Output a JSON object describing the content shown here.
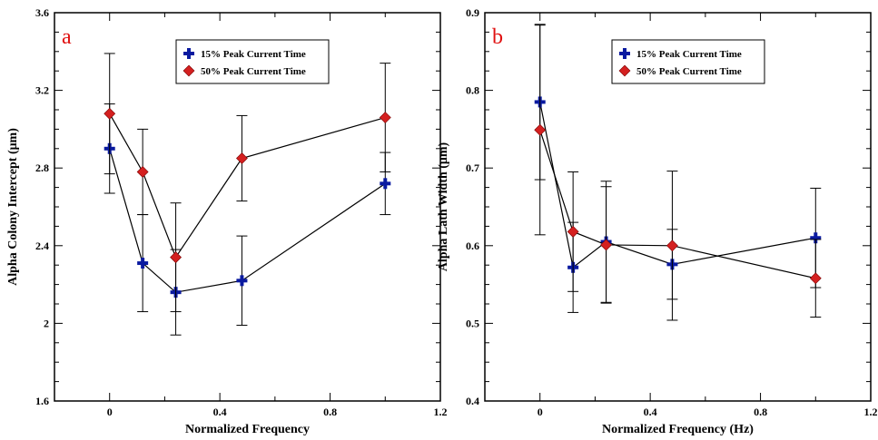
{
  "chart_data": [
    {
      "type": "scatter",
      "panel_letter": "a",
      "xlabel": "Normalized Frequency",
      "ylabel": "Alpha Colony Intercept (μm)",
      "xlim": [
        -0.2,
        1.2
      ],
      "ylim": [
        1.6,
        3.6
      ],
      "x_ticks": [
        "0",
        "0.4",
        "0.8",
        "1.2"
      ],
      "y_ticks": [
        "1.6",
        "2",
        "2.4",
        "2.8",
        "3.2",
        "3.6"
      ],
      "legend_position": "top-center",
      "series": [
        {
          "name": "15% Peak Current Time",
          "color": "#0a1aa0",
          "marker": "plus",
          "x": [
            0,
            0.12,
            0.24,
            0.48,
            1.0
          ],
          "y": [
            2.9,
            2.31,
            2.16,
            2.22,
            2.72
          ],
          "err": [
            0.23,
            0.25,
            0.22,
            0.23,
            0.16
          ]
        },
        {
          "name": "50% Peak Current Time",
          "color": "#d42020",
          "marker": "diamond",
          "x": [
            0,
            0.12,
            0.24,
            0.48,
            1.0
          ],
          "y": [
            3.08,
            2.78,
            2.34,
            2.85,
            3.06
          ],
          "err": [
            0.31,
            0.22,
            0.28,
            0.22,
            0.28
          ]
        }
      ],
      "grid": false
    },
    {
      "type": "scatter",
      "panel_letter": "b",
      "xlabel": "Normalized Frequency (Hz)",
      "ylabel": "Alpha Lath Width (μm)",
      "xlim": [
        -0.2,
        1.2
      ],
      "ylim": [
        0.4,
        0.9
      ],
      "x_ticks": [
        "0",
        "0.4",
        "0.8",
        "1.2"
      ],
      "y_ticks": [
        "0.4",
        "0.5",
        "0.6",
        "0.7",
        "0.8",
        "0.9"
      ],
      "legend_position": "top-center",
      "series": [
        {
          "name": "15% Peak Current Time",
          "color": "#0a1aa0",
          "marker": "plus",
          "x": [
            0,
            0.12,
            0.24,
            0.48,
            1.0
          ],
          "y": [
            0.785,
            0.572,
            0.605,
            0.576,
            0.61
          ],
          "err": [
            0.1,
            0.058,
            0.078,
            0.045,
            0.064
          ]
        },
        {
          "name": "50% Peak Current Time",
          "color": "#d42020",
          "marker": "diamond",
          "x": [
            0,
            0.12,
            0.24,
            0.48,
            1.0
          ],
          "y": [
            0.749,
            0.618,
            0.601,
            0.6,
            0.558
          ],
          "err": [
            0.135,
            0.077,
            0.075,
            0.096,
            0.05
          ]
        }
      ],
      "grid": false
    }
  ]
}
